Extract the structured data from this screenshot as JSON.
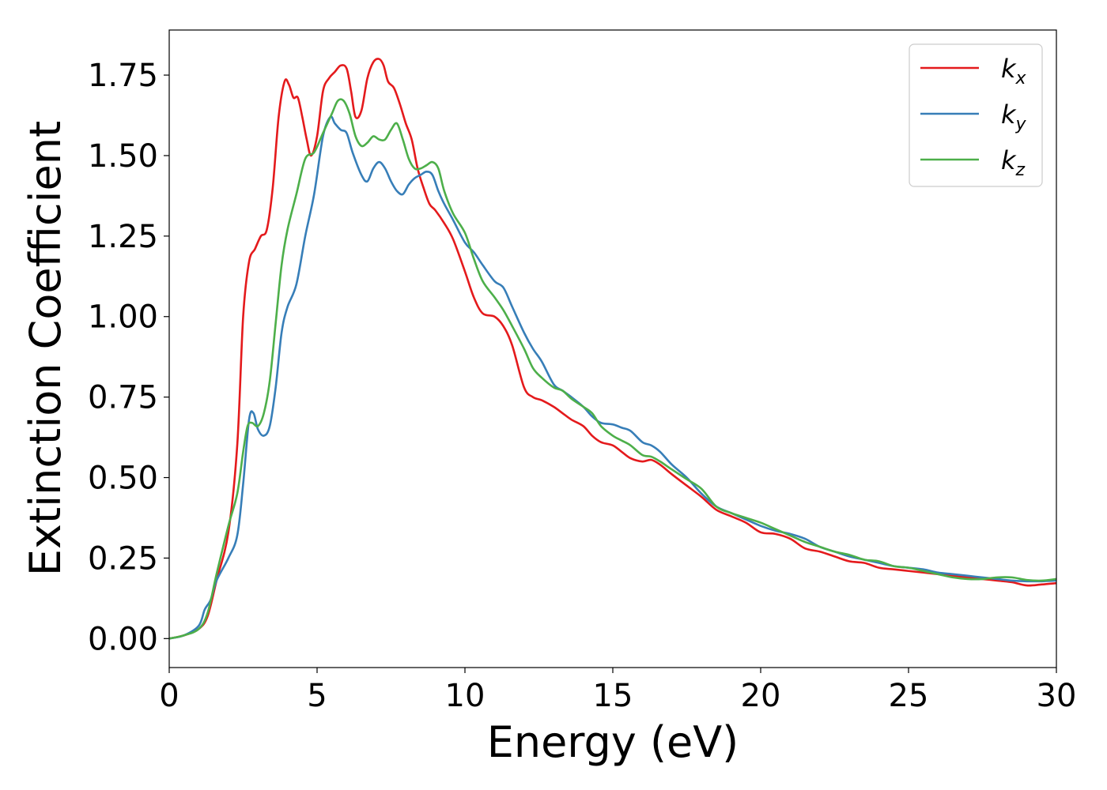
{
  "chart_data": {
    "type": "line",
    "title": "",
    "xlabel": "Energy (eV)",
    "ylabel": "Extinction Coefficient",
    "xlim": [
      0,
      30
    ],
    "ylim": [
      -0.09,
      1.89
    ],
    "xticks": [
      0,
      5,
      10,
      15,
      20,
      25,
      30
    ],
    "xtick_labels": [
      "0",
      "5",
      "10",
      "15",
      "20",
      "25",
      "30"
    ],
    "yticks": [
      0,
      0.25,
      0.5,
      0.75,
      1.0,
      1.25,
      1.5,
      1.75
    ],
    "ytick_labels": [
      "0.00",
      "0.25",
      "0.50",
      "0.75",
      "1.00",
      "1.25",
      "1.50",
      "1.75"
    ],
    "grid": false,
    "legend": {
      "position": "top-right"
    },
    "series": [
      {
        "name": "kx",
        "symbol": "k",
        "subscript": "x",
        "color": "#e41a1c",
        "x": [
          0,
          0.5,
          1.0,
          1.3,
          1.6,
          2.0,
          2.3,
          2.5,
          2.7,
          2.9,
          3.1,
          3.3,
          3.5,
          3.7,
          3.9,
          4.05,
          4.2,
          4.35,
          4.5,
          4.65,
          4.8,
          5.0,
          5.2,
          5.4,
          5.6,
          5.8,
          6.0,
          6.15,
          6.3,
          6.5,
          6.7,
          6.9,
          7.1,
          7.25,
          7.4,
          7.6,
          7.8,
          8.0,
          8.2,
          8.4,
          8.6,
          8.8,
          9.0,
          9.3,
          9.6,
          10.0,
          10.3,
          10.6,
          11.0,
          11.3,
          11.6,
          12.0,
          12.3,
          12.6,
          13.0,
          13.3,
          13.6,
          14.0,
          14.3,
          14.6,
          15.0,
          15.3,
          15.6,
          16.0,
          16.3,
          16.6,
          17.0,
          17.5,
          18.0,
          18.5,
          19.0,
          19.5,
          20.0,
          20.5,
          21.0,
          21.5,
          22.0,
          22.5,
          23.0,
          23.5,
          24.0,
          24.5,
          25.0,
          25.5,
          26.0,
          26.5,
          27.0,
          27.5,
          28.0,
          28.5,
          29.0,
          29.5,
          30.0
        ],
        "y": [
          0.0,
          0.01,
          0.03,
          0.07,
          0.18,
          0.33,
          0.6,
          1.0,
          1.17,
          1.21,
          1.25,
          1.27,
          1.4,
          1.62,
          1.73,
          1.72,
          1.68,
          1.68,
          1.62,
          1.55,
          1.5,
          1.56,
          1.7,
          1.74,
          1.76,
          1.78,
          1.77,
          1.7,
          1.62,
          1.64,
          1.74,
          1.79,
          1.8,
          1.78,
          1.73,
          1.71,
          1.66,
          1.6,
          1.55,
          1.46,
          1.4,
          1.35,
          1.33,
          1.29,
          1.24,
          1.14,
          1.06,
          1.01,
          1.0,
          0.97,
          0.91,
          0.78,
          0.75,
          0.74,
          0.72,
          0.7,
          0.68,
          0.66,
          0.63,
          0.61,
          0.6,
          0.58,
          0.56,
          0.55,
          0.555,
          0.54,
          0.51,
          0.475,
          0.44,
          0.4,
          0.38,
          0.36,
          0.33,
          0.325,
          0.31,
          0.28,
          0.27,
          0.255,
          0.24,
          0.235,
          0.22,
          0.215,
          0.21,
          0.205,
          0.2,
          0.195,
          0.19,
          0.185,
          0.18,
          0.175,
          0.165,
          0.168,
          0.172
        ]
      },
      {
        "name": "ky",
        "symbol": "k",
        "subscript": "y",
        "color": "#377eb8",
        "x": [
          0,
          0.5,
          1.0,
          1.2,
          1.4,
          1.6,
          2.0,
          2.3,
          2.5,
          2.7,
          2.85,
          3.0,
          3.2,
          3.4,
          3.6,
          3.8,
          4.0,
          4.3,
          4.6,
          4.9,
          5.2,
          5.45,
          5.6,
          5.8,
          6.0,
          6.2,
          6.5,
          6.7,
          6.9,
          7.1,
          7.3,
          7.5,
          7.7,
          7.9,
          8.1,
          8.3,
          8.5,
          8.7,
          8.9,
          9.1,
          9.3,
          9.6,
          10.0,
          10.3,
          10.6,
          11.0,
          11.3,
          11.6,
          12.0,
          12.3,
          12.6,
          13.0,
          13.3,
          13.6,
          14.0,
          14.3,
          14.6,
          15.0,
          15.3,
          15.6,
          16.0,
          16.3,
          16.6,
          17.0,
          17.5,
          18.0,
          18.5,
          19.0,
          19.5,
          20.0,
          20.5,
          21.0,
          21.5,
          22.0,
          22.5,
          23.0,
          23.5,
          24.0,
          24.5,
          25.0,
          25.5,
          26.0,
          26.5,
          27.0,
          27.5,
          28.0,
          28.5,
          29.0,
          29.5,
          30.0
        ],
        "y": [
          0.0,
          0.01,
          0.04,
          0.09,
          0.12,
          0.18,
          0.25,
          0.32,
          0.48,
          0.68,
          0.7,
          0.65,
          0.63,
          0.66,
          0.78,
          0.95,
          1.03,
          1.1,
          1.25,
          1.38,
          1.56,
          1.62,
          1.6,
          1.58,
          1.57,
          1.51,
          1.44,
          1.42,
          1.46,
          1.48,
          1.46,
          1.42,
          1.39,
          1.38,
          1.41,
          1.43,
          1.44,
          1.45,
          1.44,
          1.39,
          1.35,
          1.3,
          1.23,
          1.2,
          1.16,
          1.11,
          1.09,
          1.03,
          0.95,
          0.9,
          0.86,
          0.79,
          0.77,
          0.75,
          0.72,
          0.69,
          0.67,
          0.665,
          0.655,
          0.645,
          0.61,
          0.6,
          0.58,
          0.54,
          0.5,
          0.45,
          0.41,
          0.39,
          0.37,
          0.35,
          0.335,
          0.325,
          0.31,
          0.285,
          0.27,
          0.255,
          0.245,
          0.235,
          0.225,
          0.22,
          0.215,
          0.205,
          0.2,
          0.195,
          0.19,
          0.185,
          0.18,
          0.178,
          0.178,
          0.18
        ]
      },
      {
        "name": "kz",
        "symbol": "k",
        "subscript": "z",
        "color": "#4daf4a",
        "x": [
          0,
          0.5,
          1.0,
          1.3,
          1.6,
          2.0,
          2.3,
          2.5,
          2.65,
          2.8,
          3.0,
          3.2,
          3.4,
          3.6,
          3.8,
          4.0,
          4.3,
          4.6,
          4.9,
          5.2,
          5.5,
          5.7,
          5.9,
          6.1,
          6.3,
          6.5,
          6.7,
          6.9,
          7.1,
          7.3,
          7.5,
          7.7,
          7.9,
          8.1,
          8.3,
          8.5,
          8.7,
          8.9,
          9.1,
          9.3,
          9.6,
          10.0,
          10.3,
          10.6,
          11.0,
          11.3,
          11.6,
          12.0,
          12.3,
          12.6,
          13.0,
          13.3,
          13.6,
          14.0,
          14.3,
          14.6,
          15.0,
          15.3,
          15.6,
          16.0,
          16.3,
          16.6,
          17.0,
          17.5,
          18.0,
          18.5,
          19.0,
          19.5,
          20.0,
          20.5,
          21.0,
          21.5,
          22.0,
          22.5,
          23.0,
          23.5,
          24.0,
          24.5,
          25.0,
          25.5,
          26.0,
          26.5,
          27.0,
          27.5,
          28.0,
          28.5,
          29.0,
          29.5,
          30.0
        ],
        "y": [
          0.0,
          0.01,
          0.03,
          0.08,
          0.2,
          0.35,
          0.45,
          0.58,
          0.66,
          0.67,
          0.66,
          0.7,
          0.8,
          0.98,
          1.16,
          1.27,
          1.38,
          1.49,
          1.51,
          1.57,
          1.63,
          1.67,
          1.67,
          1.63,
          1.56,
          1.53,
          1.54,
          1.56,
          1.55,
          1.55,
          1.58,
          1.6,
          1.55,
          1.49,
          1.46,
          1.46,
          1.47,
          1.48,
          1.46,
          1.39,
          1.32,
          1.26,
          1.18,
          1.11,
          1.06,
          1.02,
          0.97,
          0.9,
          0.84,
          0.81,
          0.78,
          0.77,
          0.745,
          0.72,
          0.7,
          0.66,
          0.63,
          0.615,
          0.6,
          0.57,
          0.565,
          0.55,
          0.525,
          0.495,
          0.465,
          0.41,
          0.39,
          0.375,
          0.36,
          0.34,
          0.32,
          0.3,
          0.285,
          0.27,
          0.26,
          0.245,
          0.24,
          0.225,
          0.22,
          0.21,
          0.2,
          0.19,
          0.185,
          0.185,
          0.19,
          0.19,
          0.182,
          0.18,
          0.185
        ]
      }
    ]
  }
}
